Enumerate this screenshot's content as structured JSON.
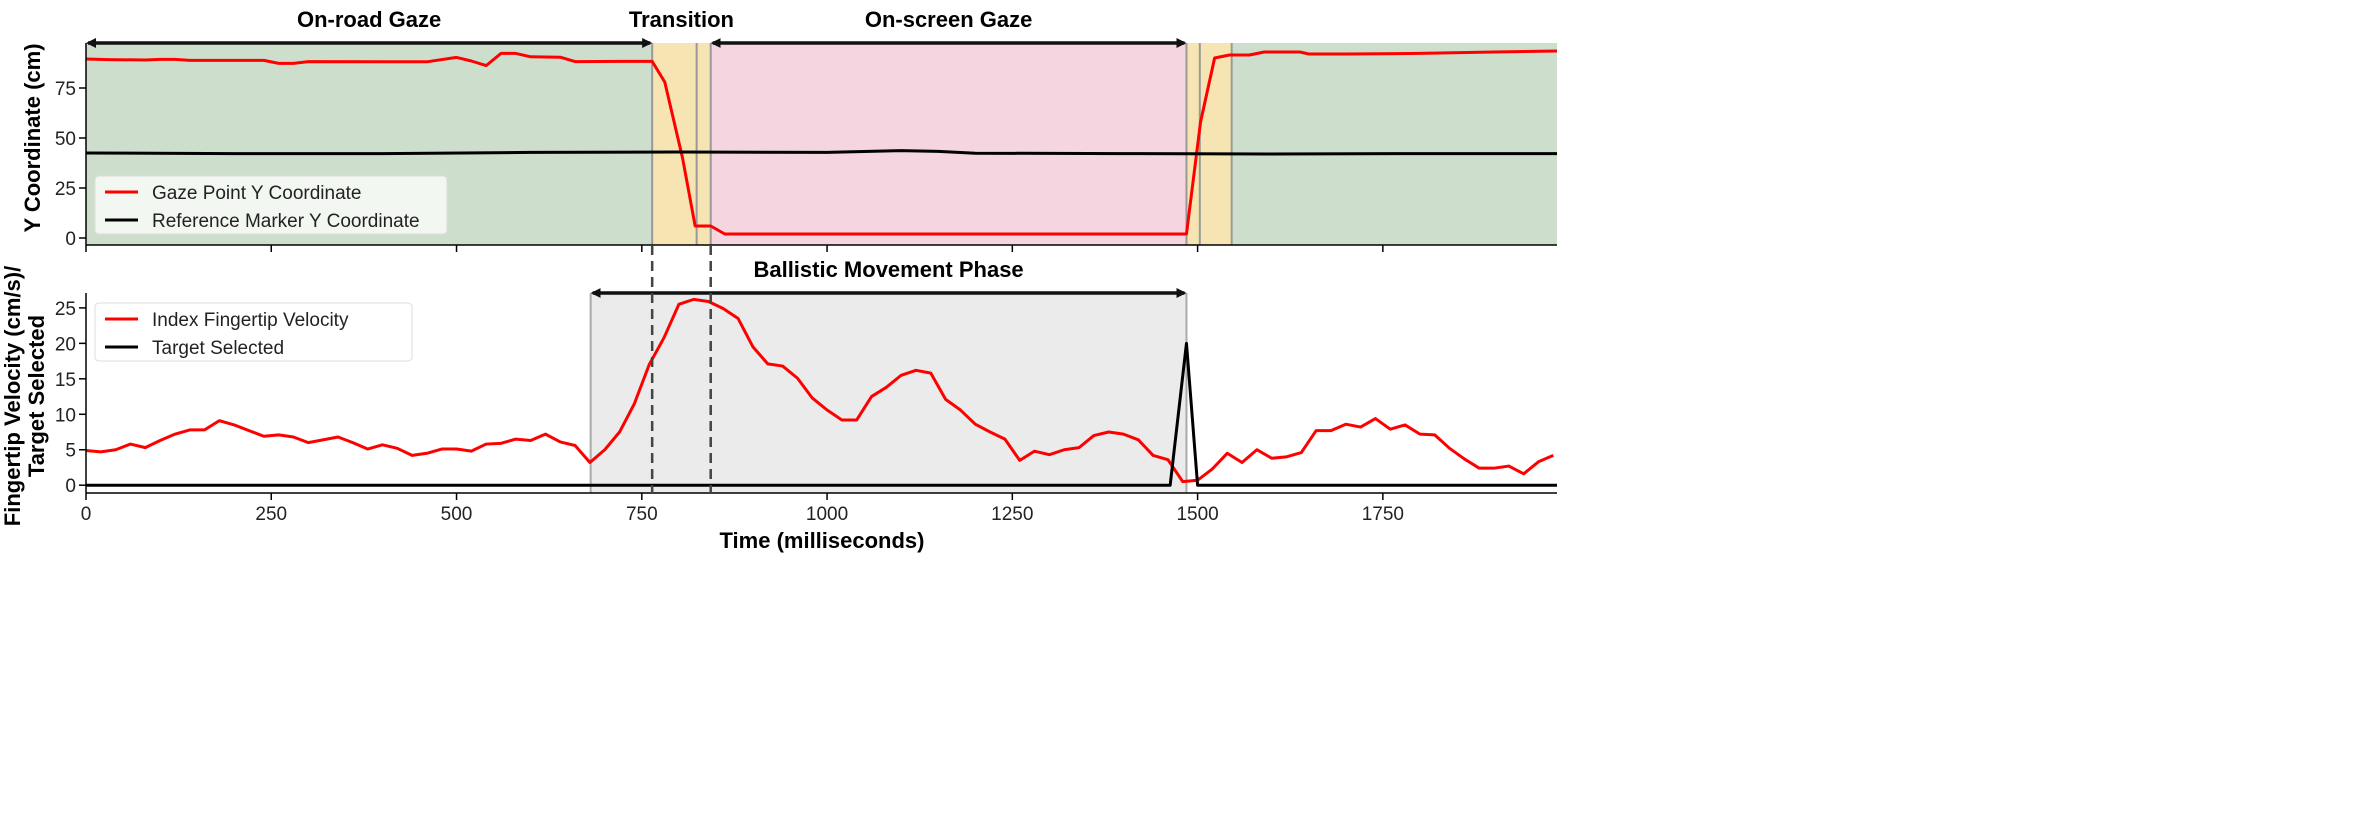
{
  "chart_data": [
    {
      "type": "line",
      "ylabel": "Y Coordinate (cm)",
      "xlim": [
        0,
        1985
      ],
      "ylim": [
        -3.5,
        97.5
      ],
      "yticks": [
        0,
        25,
        50,
        75
      ],
      "xticks": [
        0,
        250,
        500,
        750,
        1000,
        1250,
        1500,
        1750
      ],
      "grid": false,
      "legend": "lower-left",
      "regions": [
        {
          "from": 0,
          "to": 764,
          "color": "#cddfcc"
        },
        {
          "from": 764,
          "to": 843,
          "color": "#f6e4b2"
        },
        {
          "from": 843,
          "to": 1485,
          "color": "#f4d5e0"
        },
        {
          "from": 1485,
          "to": 1546,
          "color": "#f6e4b2"
        },
        {
          "from": 1546,
          "to": 1985,
          "color": "#cddfcc"
        }
      ],
      "region_lines": [
        764,
        824,
        843,
        1485,
        1503,
        1546
      ],
      "annotations": [
        {
          "text": "On-road Gaze",
          "from": 0,
          "to": 764
        },
        {
          "text": "Transition",
          "from": 764,
          "to": 843,
          "arrow": false
        },
        {
          "text": "On-screen Gaze",
          "from": 843,
          "to": 1485
        }
      ],
      "series": [
        {
          "name": "Gaze Point Y Coordinate",
          "color": "#ff0000",
          "x": [
            0,
            30,
            80,
            100,
            120,
            140,
            240,
            260,
            280,
            300,
            440,
            460,
            500,
            520,
            540,
            560,
            580,
            600,
            640,
            660,
            720,
            764,
            781,
            805,
            822,
            843,
            862,
            1485,
            1504,
            1523,
            1543,
            1570,
            1590,
            1638,
            1650,
            1700,
            1800,
            1900,
            1985
          ],
          "y": [
            89.5,
            89.2,
            89,
            89.3,
            89.3,
            88.8,
            88.8,
            87.3,
            87.3,
            88.2,
            88.1,
            88.1,
            90.3,
            88.5,
            86.2,
            92.3,
            92.3,
            90.6,
            90.4,
            88.2,
            88.3,
            88.3,
            78,
            40,
            6,
            6,
            2,
            2,
            58,
            90,
            91.5,
            91.5,
            93,
            93,
            92,
            92,
            92.3,
            93,
            93.5
          ]
        },
        {
          "name": "Reference Marker Y Coordinate",
          "color": "#000000",
          "x": [
            0,
            200,
            400,
            600,
            800,
            1000,
            1100,
            1150,
            1200,
            1400,
            1600,
            1800,
            1985
          ],
          "y": [
            42.5,
            42.2,
            42.2,
            42.8,
            43,
            42.8,
            43.7,
            43.3,
            42.4,
            42.2,
            42,
            42.2,
            42.2
          ]
        }
      ]
    },
    {
      "type": "line",
      "ylabel": "Fingertip Velocity (cm/s)/",
      "ylabel2": "Target Selected",
      "xlabel": "Time (milliseconds)",
      "xlim": [
        0,
        1985
      ],
      "ylim": [
        -1.1,
        27.1
      ],
      "yticks": [
        0,
        5,
        10,
        15,
        20,
        25
      ],
      "xticks": [
        0,
        250,
        500,
        750,
        1000,
        1250,
        1500,
        1750
      ],
      "grid": false,
      "legend": "upper-left",
      "regions": [
        {
          "from": 681,
          "to": 1485,
          "color": "#ebebeb"
        }
      ],
      "dashed_lines": [
        764,
        843
      ],
      "annotations": [
        {
          "text": "Ballistic Movement Phase",
          "from": 681,
          "to": 1485
        }
      ],
      "series": [
        {
          "name": "Index Fingertip Velocity",
          "color": "#ff0000",
          "x": [
            0,
            20,
            40,
            60,
            80,
            100,
            120,
            140,
            160,
            180,
            200,
            220,
            240,
            260,
            280,
            300,
            340,
            360,
            380,
            400,
            420,
            440,
            460,
            480,
            500,
            520,
            540,
            560,
            580,
            600,
            620,
            640,
            660,
            680,
            700,
            720,
            740,
            760,
            780,
            800,
            820,
            840,
            860,
            880,
            900,
            920,
            940,
            960,
            980,
            1000,
            1020,
            1040,
            1060,
            1080,
            1100,
            1120,
            1140,
            1160,
            1180,
            1200,
            1220,
            1240,
            1260,
            1280,
            1300,
            1320,
            1340,
            1360,
            1380,
            1400,
            1420,
            1440,
            1460,
            1480,
            1500,
            1520,
            1540,
            1560,
            1580,
            1600,
            1620,
            1640,
            1660,
            1680,
            1700,
            1720,
            1740,
            1760,
            1780,
            1800,
            1820,
            1840,
            1860,
            1880,
            1900,
            1920,
            1940,
            1960,
            1980
          ],
          "y": [
            4.9,
            4.7,
            5.0,
            5.8,
            5.3,
            6.3,
            7.2,
            7.8,
            7.8,
            9.1,
            8.5,
            7.7,
            6.9,
            7.1,
            6.8,
            6.0,
            6.8,
            6.0,
            5.1,
            5.7,
            5.2,
            4.2,
            4.5,
            5.1,
            5.1,
            4.8,
            5.8,
            5.9,
            6.5,
            6.3,
            7.2,
            6.1,
            5.6,
            3.2,
            5.0,
            7.5,
            11.5,
            17.0,
            20.8,
            25.5,
            26.2,
            25.9,
            24.9,
            23.5,
            19.5,
            17.1,
            16.8,
            15.1,
            12.3,
            10.6,
            9.2,
            9.2,
            12.5,
            13.8,
            15.5,
            16.2,
            15.8,
            12.1,
            10.6,
            8.6,
            7.5,
            6.5,
            3.5,
            4.8,
            4.3,
            5.0,
            5.3,
            7.0,
            7.5,
            7.2,
            6.4,
            4.2,
            3.6,
            0.5,
            0.7,
            2.3,
            4.5,
            3.2,
            5.0,
            3.8,
            4.0,
            4.6,
            7.7,
            7.7,
            8.6,
            8.2,
            9.4,
            7.9,
            8.5,
            7.2,
            7.1,
            5.2,
            3.7,
            2.4,
            2.4,
            2.7,
            1.6,
            3.3,
            4.2
          ]
        },
        {
          "name": "Target Selected",
          "color": "#000000",
          "x": [
            0,
            1463,
            1485,
            1500,
            1985
          ],
          "y": [
            0,
            0,
            20,
            0,
            0
          ]
        }
      ]
    }
  ]
}
